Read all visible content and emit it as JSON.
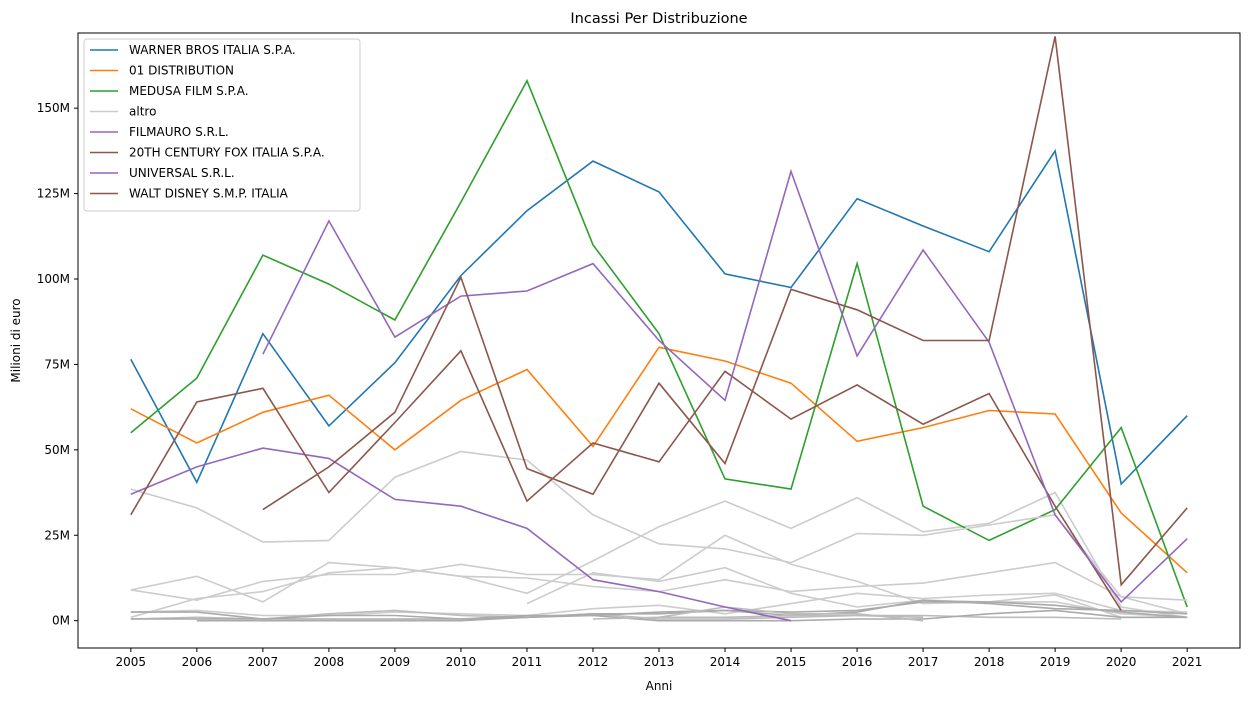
{
  "chart_data": {
    "type": "line",
    "title": "Incassi Per Distribuzione",
    "xlabel": "Anni",
    "ylabel": "Milioni di euro",
    "x": [
      2005,
      2006,
      2007,
      2008,
      2009,
      2010,
      2011,
      2012,
      2013,
      2014,
      2015,
      2016,
      2017,
      2018,
      2019,
      2020,
      2021
    ],
    "x_tick_labels": [
      "2005",
      "2006",
      "2007",
      "2008",
      "2009",
      "2010",
      "2011",
      "2012",
      "2013",
      "2014",
      "2015",
      "2016",
      "2017",
      "2018",
      "2019",
      "2020",
      "2021"
    ],
    "ylim": [
      -8,
      172
    ],
    "y_ticks": [
      0,
      25,
      50,
      75,
      100,
      125,
      150
    ],
    "y_tick_labels": [
      "0M",
      "25M",
      "50M",
      "75M",
      "100M",
      "125M",
      "150M"
    ],
    "grid": false,
    "legend_position": "top-left",
    "series": [
      {
        "name": "WARNER BROS ITALIA S.P.A.",
        "color": "#1f77b4",
        "legend": true,
        "values": [
          76.5,
          40.5,
          84,
          57,
          75.5,
          101,
          120,
          134.5,
          125.5,
          101.5,
          97.5,
          123.5,
          115.5,
          108,
          137.5,
          40,
          60
        ]
      },
      {
        "name": "01 DISTRIBUTION",
        "color": "#ff7f0e",
        "legend": true,
        "values": [
          62,
          52,
          61,
          66,
          50,
          64.5,
          73.5,
          51,
          80,
          76,
          69.5,
          52.5,
          56.5,
          61.5,
          60.5,
          31.5,
          14
        ]
      },
      {
        "name": "MEDUSA FILM S.P.A.",
        "color": "#2ca02c",
        "legend": true,
        "values": [
          55,
          71,
          107,
          98.5,
          88,
          122.5,
          158,
          110,
          84,
          41.5,
          38.5,
          104.5,
          33.5,
          23.5,
          32.5,
          56.5,
          4
        ]
      },
      {
        "name": "altro",
        "color": "#cccccc",
        "legend": true,
        "values": [
          38.5,
          33,
          23,
          23.5,
          42,
          49.5,
          47,
          31,
          22.5,
          21,
          17,
          25.5,
          25,
          28,
          31,
          7,
          6
        ]
      },
      {
        "name": "FILMAURO S.R.L.",
        "color": "#9467bd",
        "legend": true,
        "values": [
          37,
          45,
          50.5,
          47.5,
          35.5,
          33.5,
          27,
          12,
          8.5,
          4,
          0,
          null,
          null,
          null,
          null,
          null,
          null
        ]
      },
      {
        "name": "20TH CENTURY FOX ITALIA S.P.A.",
        "color": "#8c564b",
        "legend": true,
        "values": [
          31,
          64,
          68,
          37.5,
          58,
          79,
          35,
          52,
          46.5,
          73,
          59,
          69,
          57.5,
          66.5,
          33.5,
          3,
          null
        ]
      },
      {
        "name": "UNIVERSAL S.R.L.",
        "color": "#9467bd",
        "legend": true,
        "values": [
          null,
          null,
          78,
          117,
          83,
          95,
          96.5,
          104.5,
          82,
          64.5,
          131.5,
          77.5,
          108.5,
          81.5,
          31,
          5.5,
          24
        ]
      },
      {
        "name": "WALT DISNEY S.M.P. ITALIA",
        "color": "#8c564b",
        "legend": true,
        "values": [
          null,
          null,
          32.5,
          45,
          61,
          100.5,
          44.5,
          37,
          69.5,
          46,
          97,
          91,
          82,
          82,
          171,
          10.5,
          33
        ]
      },
      {
        "name": "",
        "color": "#cccccc",
        "legend": false,
        "values": [
          9,
          13,
          5.5,
          17,
          15.5,
          13,
          8,
          17.5,
          27.5,
          35,
          27,
          36,
          26,
          28.5,
          37.5,
          4,
          1
        ]
      },
      {
        "name": "",
        "color": "#cccccc",
        "legend": false,
        "values": [
          9,
          6,
          11.5,
          13.5,
          13.5,
          16.5,
          13.5,
          13.5,
          12,
          25,
          16.5,
          11.5,
          5,
          5.5,
          5.5,
          2,
          1
        ]
      },
      {
        "name": "",
        "color": "#cccccc",
        "legend": false,
        "values": [
          1,
          6.5,
          8.5,
          14,
          15.5,
          13,
          12.5,
          10,
          8.5,
          12,
          8.5,
          10,
          11,
          14,
          17,
          7,
          2
        ]
      },
      {
        "name": "",
        "color": "#cccccc",
        "legend": false,
        "values": [
          null,
          null,
          null,
          null,
          null,
          null,
          5,
          14,
          11.5,
          15.5,
          8,
          4,
          6,
          5.5,
          7.5,
          1,
          1
        ]
      },
      {
        "name": "",
        "color": "#cccccc",
        "legend": false,
        "values": [
          2.5,
          3,
          1.5,
          1.5,
          2.5,
          2,
          1.5,
          3.5,
          4.5,
          2,
          5,
          8,
          6.5,
          7.5,
          8,
          3,
          2.5
        ]
      },
      {
        "name": "",
        "color": "#bbbbbb",
        "legend": false,
        "values": [
          0.5,
          1,
          0.5,
          2,
          3,
          1.5,
          1,
          2,
          0.5,
          0.5,
          1,
          1.5,
          1.5,
          1,
          1,
          0.5,
          null
        ]
      },
      {
        "name": "",
        "color": "#aaaaaa",
        "legend": false,
        "values": [
          2.5,
          2.5,
          0.5,
          1.5,
          1.5,
          0.5,
          1.5,
          1.5,
          2.5,
          3,
          2.5,
          3,
          5.5,
          5.5,
          4.5,
          2.5,
          1
        ]
      },
      {
        "name": "",
        "color": "#aaaaaa",
        "legend": false,
        "values": [
          0.5,
          0.5,
          0.5,
          0.5,
          0.5,
          0.5,
          1,
          2,
          2,
          3,
          1.5,
          2.5,
          6,
          5,
          3.5,
          3,
          2
        ]
      },
      {
        "name": "",
        "color": "#aaaaaa",
        "legend": false,
        "values": [
          null,
          0,
          0,
          0,
          0,
          0,
          1,
          1.5,
          0,
          0,
          0,
          0.5,
          0.5,
          2,
          3,
          1,
          1
        ]
      },
      {
        "name": "",
        "color": "#bbbbbb",
        "legend": false,
        "values": [
          null,
          null,
          null,
          null,
          null,
          null,
          null,
          0.5,
          1,
          1,
          1.5,
          1.5,
          1,
          null,
          null,
          null,
          null
        ]
      },
      {
        "name": "",
        "color": "#bbbbbb",
        "legend": false,
        "values": [
          null,
          null,
          null,
          null,
          null,
          null,
          null,
          null,
          1,
          4,
          2,
          2,
          0,
          null,
          null,
          null,
          null
        ]
      }
    ]
  }
}
